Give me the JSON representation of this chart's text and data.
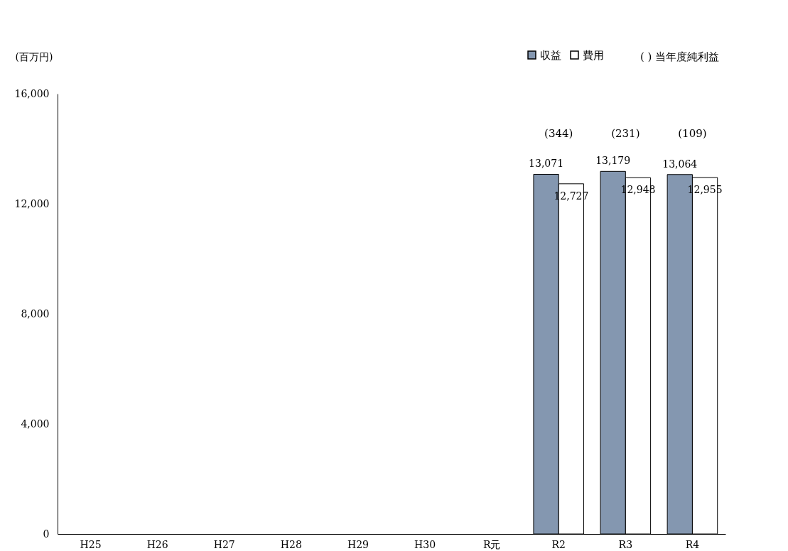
{
  "chart_data": {
    "type": "bar",
    "ylabel": "(百万円)",
    "categories": [
      "H25",
      "H26",
      "H27",
      "H28",
      "H29",
      "H30",
      "R元",
      "R2",
      "R3",
      "R4"
    ],
    "series": [
      {
        "name": "収益",
        "color": "#8497b0",
        "values": [
          null,
          null,
          null,
          null,
          null,
          null,
          null,
          13071,
          13179,
          13064
        ],
        "value_labels": [
          null,
          null,
          null,
          null,
          null,
          null,
          null,
          "13,071",
          "13,179",
          "13,064"
        ]
      },
      {
        "name": "費用",
        "color": "#ffffff",
        "values": [
          null,
          null,
          null,
          null,
          null,
          null,
          null,
          12727,
          12948,
          12955
        ],
        "value_labels": [
          null,
          null,
          null,
          null,
          null,
          null,
          null,
          "12,727",
          "12,948",
          "12,955"
        ]
      }
    ],
    "ylim": [
      0,
      16000
    ],
    "yticks": [
      {
        "value": 0,
        "label": "0"
      },
      {
        "value": 4000,
        "label": "4,000"
      },
      {
        "value": 8000,
        "label": "8,000"
      },
      {
        "value": 12000,
        "label": "12,000"
      },
      {
        "value": 16000,
        "label": "16,000"
      }
    ],
    "grid": false,
    "legend": "top right",
    "annotations": [
      "(344)",
      "(231)",
      "(109)",
      "(  ) 当年度純利益"
    ]
  }
}
